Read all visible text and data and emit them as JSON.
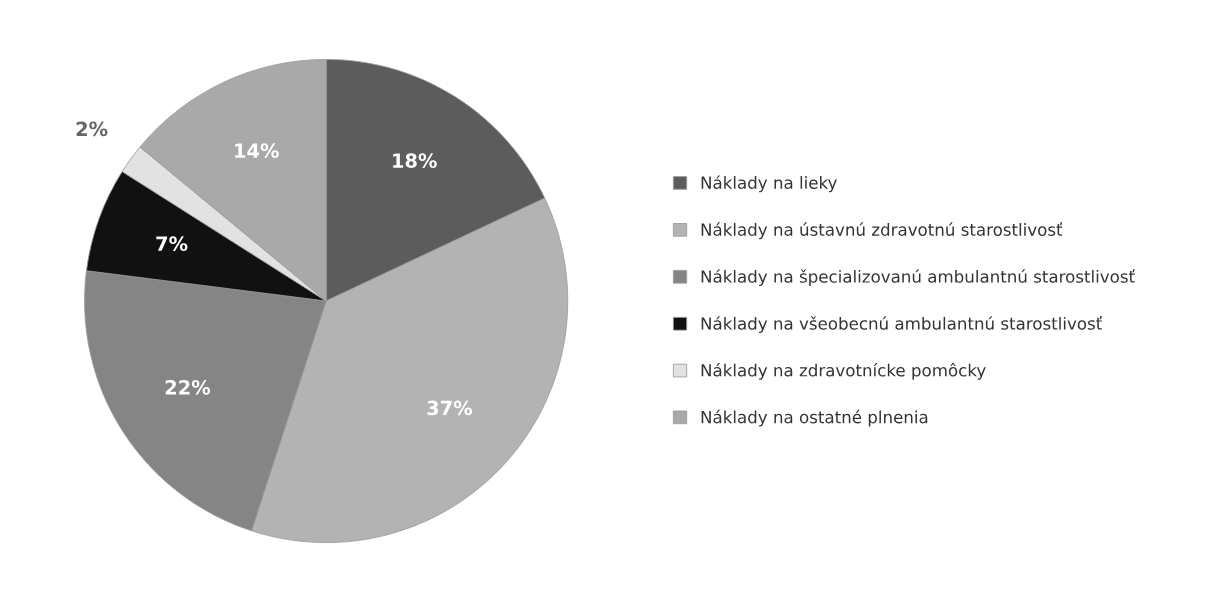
{
  "chart_data": {
    "type": "pie",
    "categories": [
      "Náklady na lieky",
      "Náklady na ústavnú zdravotnú starostlivosť",
      "Náklady na špecializovanú ambulantnú starostlivosť",
      "Náklady na všeobecnú ambulantnú starostlivosť",
      "Náklady na zdravotnícke pomôcky",
      "Náklady na ostatné plnenia"
    ],
    "values": [
      18,
      37,
      22,
      7,
      2,
      14
    ],
    "value_labels": [
      "18%",
      "37%",
      "22%",
      "7%",
      "2%",
      "14%"
    ],
    "colors": [
      "#5c5c5c",
      "#b3b3b3",
      "#858585",
      "#111111",
      "#e2e2e2",
      "#a9a9a9"
    ],
    "legend": "right"
  }
}
